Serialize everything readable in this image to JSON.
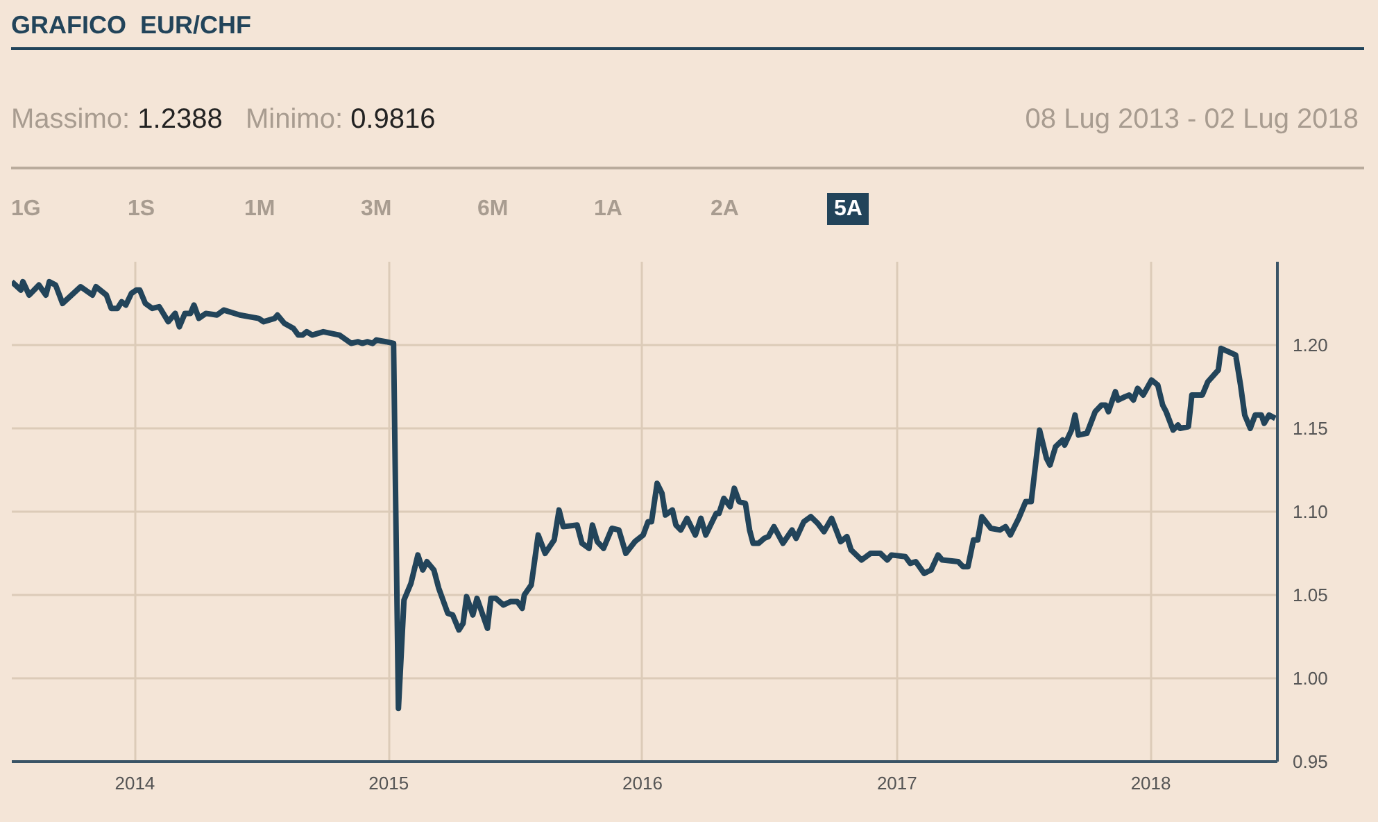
{
  "chart_data": {
    "type": "line",
    "title": "GRAFICO  EUR/CHF",
    "annotations": [
      "Massimo:",
      "1.2388",
      "Minimo:",
      "0.9816",
      "08 Lug 2013 - 02 Lug 2018",
      "1G",
      "1S",
      "1M",
      "3M",
      "6M",
      "1A",
      "2A",
      "5A"
    ],
    "xlim": [
      "2013-07-08",
      "2018-07-02"
    ],
    "xticks": [
      "2014",
      "2015",
      "2016",
      "2017",
      "2018"
    ],
    "ylim": [
      0.95,
      1.25
    ],
    "yticks": [
      {
        "value": 0.95,
        "label": "0.95"
      },
      {
        "value": 1.0,
        "label": "1.00"
      },
      {
        "value": 1.05,
        "label": "1.05"
      },
      {
        "value": 1.1,
        "label": "1.10"
      },
      {
        "value": 1.15,
        "label": "1.15"
      },
      {
        "value": 1.2,
        "label": "1.20"
      }
    ],
    "grid": true,
    "marker": "none",
    "line_style": "solid",
    "series": [
      {
        "color": "#22445a",
        "x": [
          "2013-07-08",
          "2013-07-21",
          "2013-07-24",
          "2013-08-02",
          "2013-08-16",
          "2013-08-26",
          "2013-08-31",
          "2013-09-09",
          "2013-09-19",
          "2013-10-15",
          "2013-11-01",
          "2013-11-06",
          "2013-11-21",
          "2013-11-28",
          "2013-12-07",
          "2013-12-13",
          "2013-12-19",
          "2013-12-27",
          "2014-01-03",
          "2014-01-08",
          "2014-01-16",
          "2014-01-26",
          "2014-02-05",
          "2014-02-18",
          "2014-02-28",
          "2014-03-06",
          "2014-03-14",
          "2014-03-22",
          "2014-03-27",
          "2014-04-03",
          "2014-04-13",
          "2014-04-29",
          "2014-05-09",
          "2014-06-01",
          "2014-06-28",
          "2014-07-05",
          "2014-07-21",
          "2014-07-25",
          "2014-08-04",
          "2014-08-17",
          "2014-08-24",
          "2014-08-30",
          "2014-09-05",
          "2014-09-13",
          "2014-09-29",
          "2014-10-22",
          "2014-11-08",
          "2014-11-18",
          "2014-11-24",
          "2014-12-01",
          "2014-12-09",
          "2014-12-14",
          "2014-12-28",
          "2015-01-08",
          "2015-01-15",
          "2015-01-23",
          "2015-02-02",
          "2015-02-12",
          "2015-02-19",
          "2015-02-25",
          "2015-03-07",
          "2015-03-14",
          "2015-03-27",
          "2015-04-03",
          "2015-04-12",
          "2015-04-18",
          "2015-04-23",
          "2015-05-02",
          "2015-05-08",
          "2015-05-23",
          "2015-05-28",
          "2015-06-04",
          "2015-06-15",
          "2015-06-25",
          "2015-07-05",
          "2015-07-12",
          "2015-07-15",
          "2015-07-25",
          "2015-08-04",
          "2015-08-14",
          "2015-08-27",
          "2015-09-03",
          "2015-09-09",
          "2015-09-29",
          "2015-10-06",
          "2015-10-16",
          "2015-10-21",
          "2015-10-28",
          "2015-11-06",
          "2015-11-18",
          "2015-11-28",
          "2015-12-08",
          "2015-12-21",
          "2016-01-02",
          "2016-01-09",
          "2016-01-14",
          "2016-01-22",
          "2016-01-29",
          "2016-02-03",
          "2016-02-13",
          "2016-02-18",
          "2016-02-25",
          "2016-03-05",
          "2016-03-17",
          "2016-03-25",
          "2016-04-01",
          "2016-04-16",
          "2016-04-20",
          "2016-04-27",
          "2016-05-06",
          "2016-05-12",
          "2016-05-19",
          "2016-05-28",
          "2016-06-03",
          "2016-06-08",
          "2016-06-16",
          "2016-06-24",
          "2016-06-30",
          "2016-07-08",
          "2016-07-21",
          "2016-08-03",
          "2016-08-09",
          "2016-08-20",
          "2016-08-30",
          "2016-09-09",
          "2016-09-18",
          "2016-09-29",
          "2016-10-12",
          "2016-10-21",
          "2016-10-27",
          "2016-11-11",
          "2016-11-24",
          "2016-12-08",
          "2016-12-18",
          "2016-12-24",
          "2017-01-13",
          "2017-01-20",
          "2017-01-28",
          "2017-02-09",
          "2017-02-19",
          "2017-03-01",
          "2017-03-07",
          "2017-03-30",
          "2017-04-06",
          "2017-04-13",
          "2017-04-21",
          "2017-04-27",
          "2017-05-03",
          "2017-05-16",
          "2017-05-29",
          "2017-06-06",
          "2017-06-13",
          "2017-06-25",
          "2017-07-05",
          "2017-07-13",
          "2017-07-25",
          "2017-08-04",
          "2017-08-09",
          "2017-08-17",
          "2017-08-27",
          "2017-08-30",
          "2017-09-09",
          "2017-09-14",
          "2017-09-19",
          "2017-10-01",
          "2017-10-13",
          "2017-10-22",
          "2017-10-28",
          "2017-11-01",
          "2017-11-11",
          "2017-11-15",
          "2017-11-25",
          "2017-12-01",
          "2017-12-07",
          "2017-12-13",
          "2017-12-21",
          "2018-01-02",
          "2018-01-11",
          "2018-01-18",
          "2018-01-23",
          "2018-02-02",
          "2018-02-09",
          "2018-02-12",
          "2018-02-24",
          "2018-03-01",
          "2018-03-16",
          "2018-03-24",
          "2018-04-08",
          "2018-04-12",
          "2018-05-03",
          "2018-05-10",
          "2018-05-16",
          "2018-05-24",
          "2018-05-31",
          "2018-06-09",
          "2018-06-13",
          "2018-06-20",
          "2018-06-29"
        ],
        "values": [
          1.238,
          1.233,
          1.238,
          1.23,
          1.236,
          1.23,
          1.238,
          1.236,
          1.225,
          1.235,
          1.23,
          1.235,
          1.23,
          1.222,
          1.222,
          1.226,
          1.224,
          1.231,
          1.233,
          1.233,
          1.225,
          1.222,
          1.223,
          1.214,
          1.219,
          1.211,
          1.219,
          1.219,
          1.224,
          1.216,
          1.219,
          1.218,
          1.221,
          1.218,
          1.216,
          1.214,
          1.216,
          1.218,
          1.213,
          1.21,
          1.206,
          1.206,
          1.208,
          1.206,
          1.208,
          1.206,
          1.201,
          1.202,
          1.201,
          1.202,
          1.201,
          1.203,
          1.202,
          1.201,
          0.982,
          1.047,
          1.057,
          1.074,
          1.065,
          1.07,
          1.065,
          1.054,
          1.039,
          1.038,
          1.029,
          1.033,
          1.049,
          1.038,
          1.048,
          1.03,
          1.048,
          1.048,
          1.044,
          1.046,
          1.046,
          1.042,
          1.05,
          1.056,
          1.086,
          1.075,
          1.083,
          1.101,
          1.091,
          1.092,
          1.081,
          1.078,
          1.092,
          1.082,
          1.078,
          1.09,
          1.089,
          1.075,
          1.082,
          1.086,
          1.094,
          1.094,
          1.117,
          1.111,
          1.098,
          1.101,
          1.092,
          1.089,
          1.096,
          1.086,
          1.096,
          1.086,
          1.099,
          1.099,
          1.108,
          1.103,
          1.114,
          1.106,
          1.105,
          1.089,
          1.081,
          1.081,
          1.084,
          1.085,
          1.091,
          1.081,
          1.089,
          1.084,
          1.094,
          1.097,
          1.093,
          1.088,
          1.096,
          1.082,
          1.085,
          1.077,
          1.071,
          1.075,
          1.075,
          1.071,
          1.074,
          1.073,
          1.069,
          1.07,
          1.063,
          1.065,
          1.074,
          1.071,
          1.07,
          1.067,
          1.067,
          1.083,
          1.083,
          1.097,
          1.09,
          1.089,
          1.091,
          1.086,
          1.096,
          1.106,
          1.106,
          1.149,
          1.132,
          1.128,
          1.139,
          1.143,
          1.14,
          1.149,
          1.158,
          1.146,
          1.147,
          1.16,
          1.164,
          1.164,
          1.16,
          1.172,
          1.167,
          1.169,
          1.17,
          1.167,
          1.174,
          1.17,
          1.179,
          1.176,
          1.164,
          1.16,
          1.149,
          1.152,
          1.15,
          1.151,
          1.17,
          1.17,
          1.178,
          1.185,
          1.198,
          1.194,
          1.176,
          1.158,
          1.15,
          1.158,
          1.158,
          1.153,
          1.158,
          1.156
        ]
      }
    ]
  }
}
